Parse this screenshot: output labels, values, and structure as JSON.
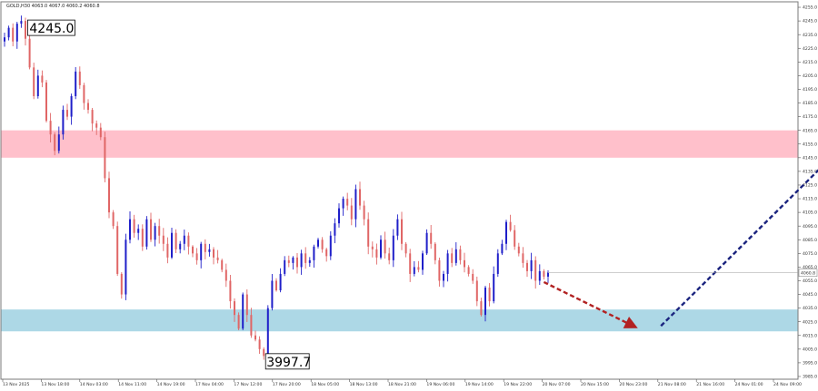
{
  "header": {
    "symbol_line": "GOLD,H30  4063.0 4067.0 4060.2 4060.8"
  },
  "callouts": {
    "high": "4245.0",
    "low": "3997.7"
  },
  "price_tag": "4060.8",
  "chart_data": {
    "type": "candlestick",
    "ylim": [
      3983,
      4259
    ],
    "y_ticks": [
      "4255.0",
      "4245.0",
      "4235.0",
      "4225.0",
      "4215.0",
      "4205.0",
      "4195.0",
      "4185.0",
      "4175.0",
      "4165.0",
      "4155.0",
      "4145.0",
      "4135.0",
      "4125.0",
      "4115.0",
      "4105.0",
      "4095.0",
      "4085.0",
      "4075.0",
      "4065.0",
      "4055.0",
      "4045.0",
      "4035.0",
      "4025.0",
      "4015.0",
      "4005.0",
      "3995.0",
      "3985.0"
    ],
    "x_ticks": [
      "13 Nov 2025",
      "13 Nov 18:00",
      "14 Nov 03:00",
      "14 Nov 11:00",
      "14 Nov 19:00",
      "17 Nov 04:00",
      "17 Nov 12:00",
      "17 Nov 20:00",
      "18 Nov 05:00",
      "18 Nov 13:00",
      "18 Nov 21:00",
      "19 Nov 06:00",
      "19 Nov 14:00",
      "19 Nov 22:00",
      "20 Nov 07:00",
      "20 Nov 15:00",
      "20 Nov 23:00",
      "21 Nov 08:00",
      "21 Nov 16:00",
      "24 Nov 01:00",
      "24 Nov 09:00"
    ],
    "zones": [
      {
        "name": "resistance",
        "from": 4145,
        "to": 4165,
        "color": "#ffc0cb"
      },
      {
        "name": "support",
        "from": 4018,
        "to": 4034,
        "color": "#add8e6"
      }
    ],
    "arrows": [
      {
        "name": "decline",
        "from": [
          4059,
          4054
        ],
        "to": [
          4081,
          4021
        ],
        "color": "#b22222"
      },
      {
        "name": "rally",
        "from": [
          4087,
          4022
        ],
        "to": [
          4130,
          4152
        ],
        "color": "#1a237e"
      }
    ],
    "prices": [
      4233,
      4240,
      4230,
      4243,
      4245,
      4232,
      4211,
      4190,
      4205,
      4200,
      4172,
      4162,
      4150,
      4162,
      4180,
      4175,
      4190,
      4208,
      4198,
      4185,
      4180,
      4170,
      4167,
      4160,
      4130,
      4105,
      4095,
      4060,
      4045,
      4085,
      4100,
      4090,
      4093,
      4080,
      4100,
      4085,
      4095,
      4088,
      4082,
      4072,
      4090,
      4078,
      4082,
      4088,
      4080,
      4075,
      4070,
      4082,
      4076,
      4078,
      4072,
      4070,
      4063,
      4055,
      4040,
      4030,
      4020,
      4045,
      4030,
      4015,
      4012,
      4005,
      4000,
      4035,
      4055,
      4048,
      4060,
      4070,
      4068,
      4072,
      4065,
      4075,
      4068,
      4070,
      4080,
      4085,
      4078,
      4073,
      4088,
      4097,
      4108,
      4115,
      4110,
      4100,
      4122,
      4110,
      4100,
      4080,
      4078,
      4072,
      4085,
      4075,
      4070,
      4088,
      4100,
      4082,
      4075,
      4060,
      4065,
      4063,
      4075,
      4090,
      4082,
      4070,
      4055,
      4060,
      4075,
      4068,
      4078,
      4070,
      4065,
      4060,
      4055,
      4040,
      4030,
      4050,
      4040,
      4060,
      4075,
      4082,
      4098,
      4092,
      4080,
      4075,
      4068,
      4062,
      4070,
      4055,
      4062,
      4058,
      4061
    ]
  }
}
